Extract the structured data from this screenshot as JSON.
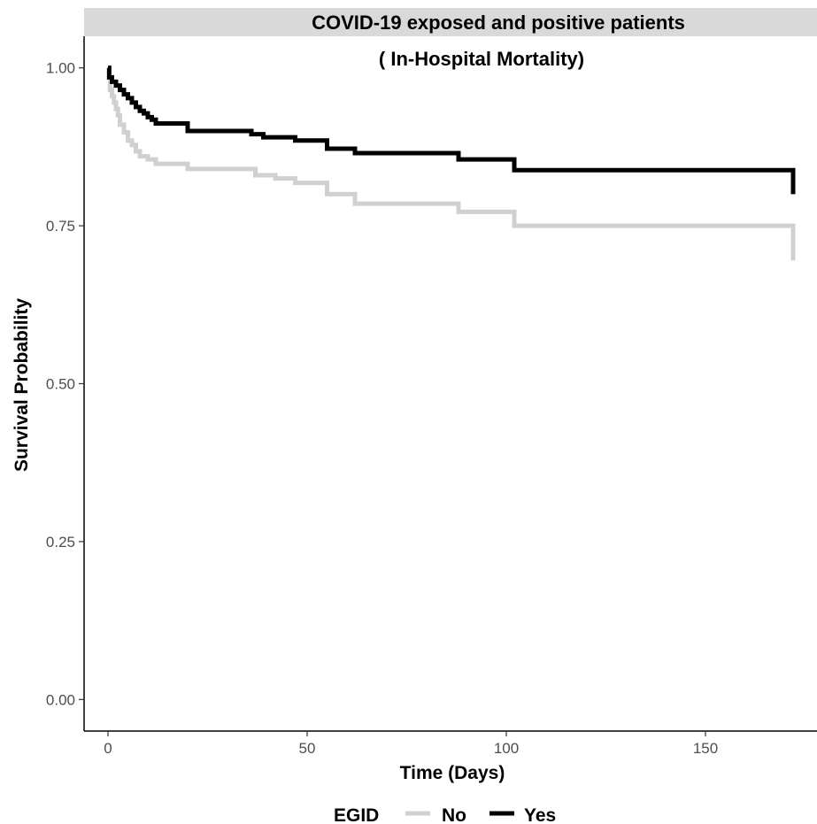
{
  "chart_data": {
    "type": "line",
    "title": "COVID-19 exposed and positive patients",
    "subtitle": "( In-Hospital Mortality)",
    "xlabel": "Time (Days)",
    "ylabel": "Survival Probability",
    "xlim": [
      -6,
      178
    ],
    "ylim": [
      -0.05,
      1.05
    ],
    "x_ticks": [
      0,
      50,
      100,
      150
    ],
    "y_ticks": [
      0.0,
      0.25,
      0.5,
      0.75,
      1.0
    ],
    "x_tick_labels": [
      "0",
      "50",
      "100",
      "150"
    ],
    "y_tick_labels": [
      "0.00",
      "0.25",
      "0.50",
      "0.75",
      "1.00"
    ],
    "grid": false,
    "legend": {
      "position": "bottom",
      "title": "EGID",
      "entries": [
        "No",
        "Yes"
      ]
    },
    "series": [
      {
        "name": "No",
        "color": "#d0d0d0",
        "step": true,
        "x": [
          0,
          0.5,
          1,
          1.5,
          2,
          2.5,
          3,
          4,
          5,
          6,
          7,
          8,
          10,
          12,
          16,
          20,
          27,
          37,
          42,
          47,
          55,
          62,
          88,
          102,
          165,
          172,
          172
        ],
        "y": [
          0.98,
          0.965,
          0.955,
          0.945,
          0.935,
          0.925,
          0.91,
          0.898,
          0.885,
          0.878,
          0.868,
          0.86,
          0.855,
          0.848,
          0.848,
          0.84,
          0.84,
          0.83,
          0.825,
          0.818,
          0.8,
          0.785,
          0.772,
          0.75,
          0.75,
          0.75,
          0.695
        ]
      },
      {
        "name": "Yes",
        "color": "#000000",
        "step": true,
        "x": [
          0,
          0.3,
          1,
          2,
          3,
          4,
          5,
          6,
          7,
          8,
          9,
          10,
          11,
          12,
          20,
          27,
          36,
          39,
          44,
          47,
          55,
          62,
          88,
          102,
          172,
          172
        ],
        "y": [
          1.0,
          0.985,
          0.978,
          0.972,
          0.965,
          0.958,
          0.952,
          0.945,
          0.938,
          0.932,
          0.928,
          0.922,
          0.918,
          0.912,
          0.9,
          0.9,
          0.895,
          0.89,
          0.89,
          0.885,
          0.872,
          0.865,
          0.855,
          0.838,
          0.838,
          0.8
        ]
      }
    ]
  }
}
